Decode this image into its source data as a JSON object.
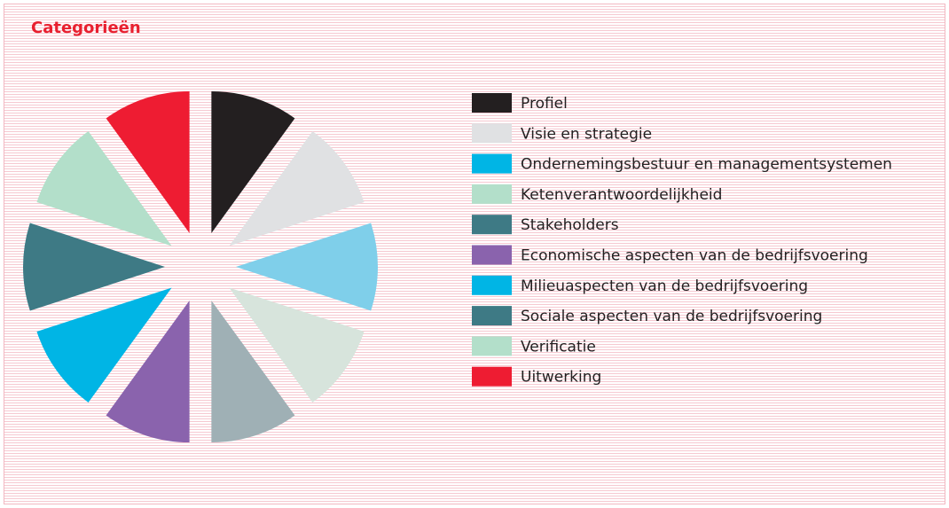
{
  "chart_data": {
    "type": "pie",
    "title": "Categorieën",
    "categories": [
      "Profiel",
      "Visie en strategie",
      "Ondernemingsbestuur en managementsystemen",
      "Ketenverantwoordelijkheid",
      "Stakeholders",
      "Economische aspecten van de bedrijfsvoering",
      "Milieuaspecten van de bedrijfsvoering",
      "Sociale aspecten van de bedrijfsvoering",
      "Verificatie",
      "Uitwerking"
    ],
    "values": [
      10,
      10,
      10,
      10,
      10,
      10,
      10,
      10,
      10,
      10
    ],
    "colors": [
      "#231f20",
      "#e0e1e3",
      "#7fcfea",
      "#d7e4dc",
      "#9fb0b5",
      "#8a63ad",
      "#00b5e5",
      "#3e7a85",
      "#b3dfca",
      "#ee1c32"
    ],
    "legend_colors": [
      "#231f20",
      "#e0e1e3",
      "#00b5e5",
      "#b3dfca",
      "#3e7a85",
      "#8a63ad",
      "#00b5e5",
      "#3e7a85",
      "#b3dfca",
      "#ee1c32"
    ],
    "legend": "right"
  }
}
